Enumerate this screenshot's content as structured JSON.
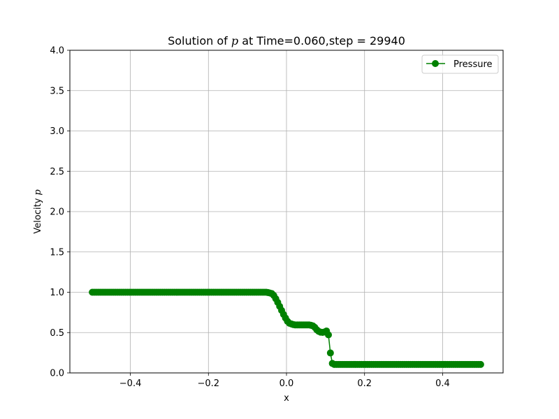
{
  "chart_data": {
    "type": "line",
    "title_prefix": "Solution of ",
    "title_var": "p",
    "title_suffix": " at Time=0.060,step = 29940",
    "xlabel": "x",
    "ylabel_prefix": "Velocity ",
    "ylabel_var": "p",
    "xlim": [
      -0.555,
      0.555
    ],
    "ylim": [
      0,
      4
    ],
    "xticks": [
      -0.4,
      -0.2,
      0.0,
      0.2,
      0.4
    ],
    "xtick_labels": [
      "−0.4",
      "−0.2",
      "0.0",
      "0.2",
      "0.4"
    ],
    "yticks": [
      0.0,
      0.5,
      1.0,
      1.5,
      2.0,
      2.5,
      3.0,
      3.5,
      4.0
    ],
    "ytick_labels": [
      "0.0",
      "0.5",
      "1.0",
      "1.5",
      "2.0",
      "2.5",
      "3.0",
      "3.5",
      "4.0"
    ],
    "grid": true,
    "legend_position": "top-right",
    "series": [
      {
        "name": "Pressure",
        "color": "#008000",
        "marker": "circle",
        "x_range": [
          -0.5,
          0.5
        ],
        "n_points": 200,
        "y_profile": [
          [
            -0.5,
            1.0
          ],
          [
            -0.05,
            1.0
          ],
          [
            -0.035,
            0.98
          ],
          [
            -0.025,
            0.9
          ],
          [
            -0.015,
            0.8
          ],
          [
            -0.005,
            0.7
          ],
          [
            0.005,
            0.62
          ],
          [
            0.02,
            0.595
          ],
          [
            0.06,
            0.595
          ],
          [
            0.07,
            0.58
          ],
          [
            0.08,
            0.52
          ],
          [
            0.09,
            0.5
          ],
          [
            0.1,
            0.51
          ],
          [
            0.105,
            0.53
          ],
          [
            0.108,
            0.46
          ],
          [
            0.11,
            0.38
          ],
          [
            0.112,
            0.27
          ],
          [
            0.114,
            0.18
          ],
          [
            0.117,
            0.12
          ],
          [
            0.12,
            0.105
          ],
          [
            0.5,
            0.105
          ]
        ]
      }
    ]
  }
}
